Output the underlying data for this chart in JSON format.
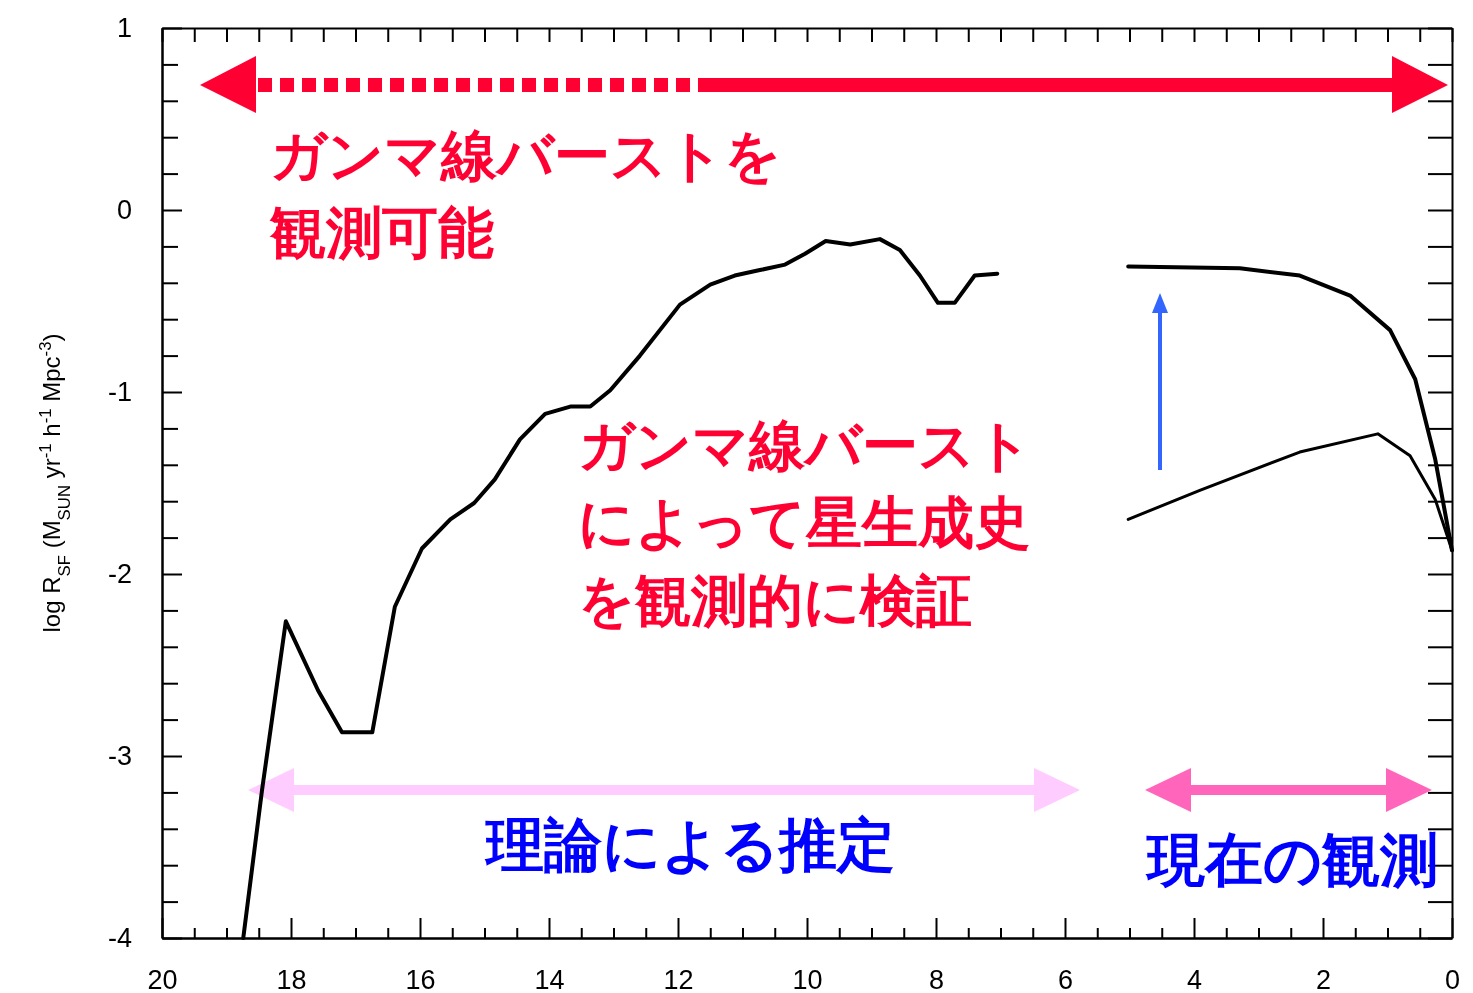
{
  "chart_data": {
    "type": "line",
    "ylabel": "log R$_{SF}$ (M$_{SUN}$ yr$^{-1}$ h$^{-1}$ Mpc$^{-3}$)",
    "xlim": [
      20,
      0
    ],
    "xticks": [
      20,
      {
        "value": 19.5,
        "label": null
      },
      {
        "value": 19,
        "label": null
      },
      {
        "value": 18.5,
        "label": null
      },
      18,
      {
        "value": 17.5,
        "label": null
      },
      {
        "value": 17,
        "label": null
      },
      {
        "value": 16.5,
        "label": null
      },
      16,
      {
        "value": 15.5,
        "label": null
      },
      {
        "value": 15,
        "label": null
      },
      {
        "value": 14.5,
        "label": null
      },
      14,
      {
        "value": 13.5,
        "label": null
      },
      {
        "value": 13,
        "label": null
      },
      {
        "value": 12.5,
        "label": null
      },
      12,
      {
        "value": 11.5,
        "label": null
      },
      {
        "value": 11,
        "label": null
      },
      {
        "value": 10.5,
        "label": null
      },
      10,
      {
        "value": 9.5,
        "label": null
      },
      {
        "value": 9,
        "label": null
      },
      {
        "value": 8.5,
        "label": null
      },
      8,
      {
        "value": 7.5,
        "label": null
      },
      {
        "value": 7,
        "label": null
      },
      {
        "value": 6.5,
        "label": null
      },
      6,
      {
        "value": 5.5,
        "label": null
      },
      {
        "value": 5,
        "label": null
      },
      {
        "value": 4.5,
        "label": null
      },
      4,
      {
        "value": 3.5,
        "label": null
      },
      {
        "value": 3,
        "label": null
      },
      {
        "value": 2.5,
        "label": null
      },
      2,
      {
        "value": 1.5,
        "label": null
      },
      {
        "value": 1,
        "label": null
      },
      {
        "value": 0.5,
        "label": null
      },
      0
    ],
    "ylim": [
      -4,
      1
    ],
    "yticks": [
      -4,
      {
        "value": -3.8,
        "label": null
      },
      {
        "value": -3.6,
        "label": null
      },
      {
        "value": -3.4,
        "label": null
      },
      {
        "value": -3.2,
        "label": null
      },
      -3,
      {
        "value": -2.8,
        "label": null
      },
      {
        "value": -2.6,
        "label": null
      },
      {
        "value": -2.4,
        "label": null
      },
      {
        "value": -2.2,
        "label": null
      },
      -2,
      {
        "value": -1.8,
        "label": null
      },
      {
        "value": -1.6,
        "label": null
      },
      {
        "value": -1.4,
        "label": null
      },
      {
        "value": -1.2,
        "label": null
      },
      -1,
      {
        "value": -0.8,
        "label": null
      },
      {
        "value": -0.6,
        "label": null
      },
      {
        "value": -0.4,
        "label": null
      },
      {
        "value": -0.2,
        "label": null
      },
      0,
      {
        "value": 0.2,
        "label": null
      },
      {
        "value": 0.4,
        "label": null
      },
      {
        "value": 0.6,
        "label": null
      },
      {
        "value": 0.8,
        "label": null
      },
      1
    ],
    "grid": false,
    "series": [
      {
        "color": "#000000",
        "x": [
          18.74,
          18.45,
          18.08,
          17.58,
          17.21,
          16.74,
          16.39,
          15.97,
          15.53,
          15.16,
          14.84,
          14.45,
          14.06,
          13.67,
          13.36,
          13.05,
          12.59,
          11.97,
          11.5,
          11.12,
          10.73,
          10.34,
          10.03,
          9.71,
          9.33,
          8.87,
          8.56,
          8.25,
          7.97,
          7.71,
          7.4,
          7.05
        ],
        "values": [
          -4.0,
          -3.19,
          -2.26,
          -2.64,
          -2.87,
          -2.87,
          -2.18,
          -1.86,
          -1.7,
          -1.61,
          -1.48,
          -1.26,
          -1.12,
          -1.08,
          -1.08,
          -0.99,
          -0.8,
          -0.52,
          -0.41,
          -0.36,
          -0.33,
          -0.3,
          -0.24,
          -0.17,
          -0.19,
          -0.16,
          -0.22,
          -0.36,
          -0.51,
          -0.51,
          -0.36,
          -0.35
        ]
      },
      {
        "color": "#000000",
        "x": [
          5.02,
          3.29,
          2.36,
          1.58,
          0.96,
          0.57,
          0.26,
          0
        ],
        "values": [
          -0.31,
          -0.32,
          -0.36,
          -0.47,
          -0.66,
          -0.93,
          -1.37,
          -1.87
        ]
      },
      {
        "color": "#000000",
        "x": [
          5.02,
          3.91,
          2.36,
          1.15,
          0.65,
          0.26,
          0
        ],
        "values": [
          -1.7,
          -1.54,
          -1.33,
          -1.23,
          -1.35,
          -1.59,
          -1.87
        ]
      }
    ],
    "annotations": [
      "ガンマ線バーストを観測可能",
      "ガンマ線バーストによって星生成史を観測的に検証",
      "理論による推定",
      "現在の観測"
    ]
  }
}
